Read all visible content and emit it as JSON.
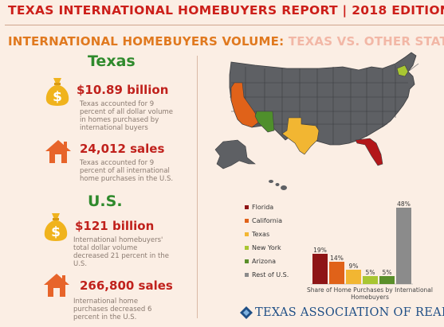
{
  "header": {
    "title": "TEXAS INTERNATIONAL HOMEBUYERS REPORT | 2018 EDITION",
    "subtitle_part1": "INTERNATIONAL HOMEBUYERS VOLUME:",
    "subtitle_part2": "TEXAS VS. OTHER STATES"
  },
  "texas": {
    "heading": "Texas",
    "volume": "$10.89 billion",
    "volume_desc": "Texas accounted for 9 percent of all dollar volume in homes purchased by international buyers",
    "sales": "24,012 sales",
    "sales_desc": "Texas accounted for 9 percent of all international home purchases in the U.S."
  },
  "us": {
    "heading": "U.S.",
    "volume": "$121 billion",
    "volume_desc": "International homebuyers' total dollar volume decreased 21 percent in the U.S.",
    "sales": "266,800 sales",
    "sales_desc": "International home purchases decreased 6 percent in the U.S."
  },
  "icons": {
    "money": "money-bag-icon",
    "house": "house-icon"
  },
  "colors": {
    "title_red": "#cc1f1a",
    "accent_orange": "#e0791f",
    "texas_green": "#2f8a2c",
    "icon_gold": "#f0b31d",
    "house_orange": "#e7642a",
    "map_gray": "#5e6064"
  },
  "chart_data": {
    "type": "bar",
    "categories": [
      "Florida",
      "California",
      "Texas",
      "New York",
      "Arizona",
      "Rest of U.S."
    ],
    "values": [
      19,
      14,
      9,
      5,
      5,
      48
    ],
    "data_labels": [
      "19%",
      "14%",
      "9%",
      "5%",
      "5%",
      "48%"
    ],
    "colors": [
      "#8e1516",
      "#e06219",
      "#f2b632",
      "#a8c632",
      "#5a8f2a",
      "#8b8b8b"
    ],
    "xlabel": "Share of Home Purchases by International Homebuyers",
    "ylim": [
      0,
      50
    ],
    "legend_position": "left",
    "grid": false
  },
  "footer": {
    "logo_text": "TEXAS ASSOCIATION OF REALTORS®"
  }
}
